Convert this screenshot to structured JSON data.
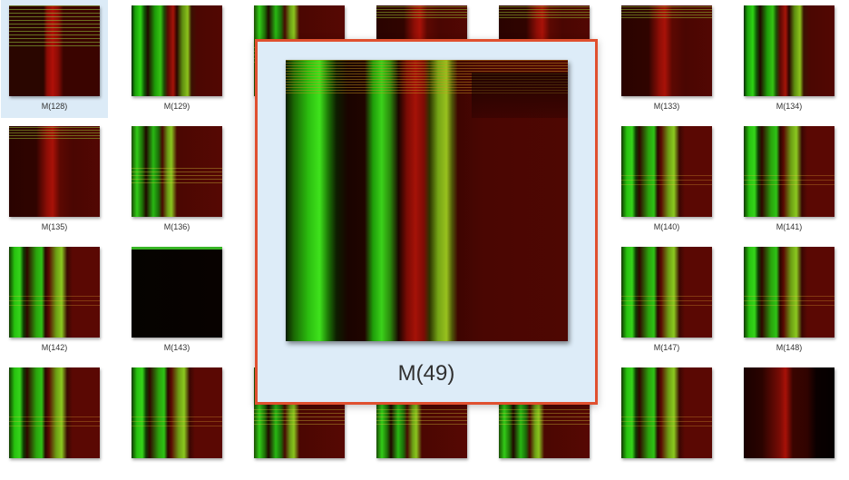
{
  "tiles": [
    {
      "label": "M(128)",
      "pattern": "p-sel",
      "selected": true
    },
    {
      "label": "M(129)",
      "pattern": "p-stripes-a"
    },
    {
      "label": "",
      "pattern": "p-green-cols"
    },
    {
      "label": "",
      "pattern": "p-red"
    },
    {
      "label": "",
      "pattern": "p-red"
    },
    {
      "label": "M(133)",
      "pattern": "p-red"
    },
    {
      "label": "M(134)",
      "pattern": "p-stripes-a"
    },
    {
      "label": "M(135)",
      "pattern": "p-red"
    },
    {
      "label": "M(136)",
      "pattern": "p-green-cols"
    },
    {
      "label": "",
      "pattern": ""
    },
    {
      "label": "",
      "pattern": ""
    },
    {
      "label": "",
      "pattern": ""
    },
    {
      "label": "M(140)",
      "pattern": "p-stripes-b"
    },
    {
      "label": "M(141)",
      "pattern": "p-stripes-b"
    },
    {
      "label": "M(142)",
      "pattern": "p-stripes-b"
    },
    {
      "label": "M(143)",
      "pattern": "p-dark"
    },
    {
      "label": "",
      "pattern": ""
    },
    {
      "label": "",
      "pattern": ""
    },
    {
      "label": "",
      "pattern": ""
    },
    {
      "label": "M(147)",
      "pattern": "p-stripes-b"
    },
    {
      "label": "M(148)",
      "pattern": "p-stripes-b"
    },
    {
      "label": "",
      "pattern": "p-stripes-b"
    },
    {
      "label": "",
      "pattern": "p-stripes-b"
    },
    {
      "label": "",
      "pattern": "p-green-cols"
    },
    {
      "label": "",
      "pattern": "p-green-cols"
    },
    {
      "label": "",
      "pattern": "p-green-cols"
    },
    {
      "label": "",
      "pattern": "p-stripes-b"
    },
    {
      "label": "",
      "pattern": "p-dark-right"
    }
  ],
  "preview": {
    "label": "M(49)"
  },
  "colors": {
    "selection_bg": "#dcebf7",
    "preview_border": "#e0502f",
    "preview_bg": "#ddecf8"
  }
}
